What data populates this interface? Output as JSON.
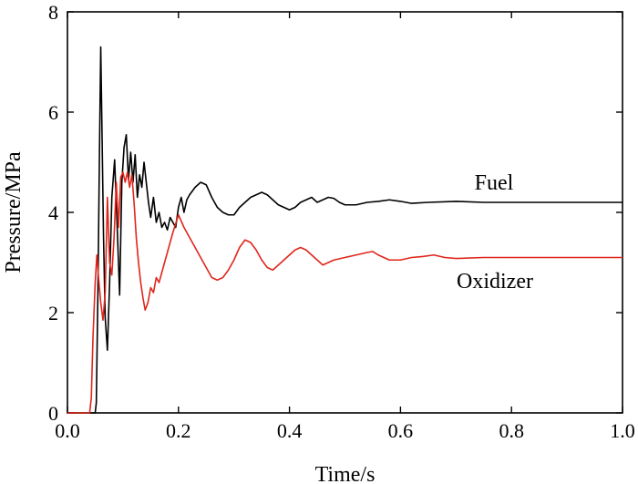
{
  "chart_data": {
    "type": "line",
    "xlabel": "Time/s",
    "ylabel": "Pressure/MPa",
    "xlim": [
      0.0,
      1.0
    ],
    "ylim": [
      0,
      8
    ],
    "x_ticks": [
      "0.0",
      "0.2",
      "0.4",
      "0.6",
      "0.8",
      "1.0"
    ],
    "y_ticks": [
      "0",
      "2",
      "4",
      "6",
      "8"
    ],
    "grid": false,
    "legend": "none",
    "series": [
      {
        "name": "Fuel",
        "color": "#000000",
        "x": [
          0.0,
          0.05,
          0.052,
          0.055,
          0.058,
          0.06,
          0.062,
          0.065,
          0.068,
          0.072,
          0.076,
          0.08,
          0.085,
          0.09,
          0.094,
          0.098,
          0.102,
          0.106,
          0.11,
          0.114,
          0.118,
          0.122,
          0.126,
          0.13,
          0.134,
          0.138,
          0.142,
          0.146,
          0.15,
          0.155,
          0.16,
          0.165,
          0.17,
          0.175,
          0.18,
          0.185,
          0.19,
          0.195,
          0.2,
          0.205,
          0.21,
          0.215,
          0.22,
          0.23,
          0.24,
          0.25,
          0.26,
          0.27,
          0.28,
          0.29,
          0.3,
          0.31,
          0.32,
          0.33,
          0.34,
          0.35,
          0.36,
          0.37,
          0.38,
          0.39,
          0.4,
          0.41,
          0.42,
          0.43,
          0.44,
          0.45,
          0.46,
          0.47,
          0.48,
          0.49,
          0.5,
          0.52,
          0.54,
          0.56,
          0.58,
          0.6,
          0.62,
          0.65,
          0.7,
          0.75,
          0.8,
          0.9,
          1.0
        ],
        "y": [
          0.0,
          0.0,
          0.2,
          2.5,
          5.5,
          7.3,
          5.8,
          3.5,
          1.9,
          1.25,
          2.6,
          4.3,
          5.05,
          3.6,
          2.35,
          4.6,
          5.3,
          5.55,
          4.65,
          5.2,
          4.6,
          5.15,
          4.3,
          4.75,
          4.5,
          5.0,
          4.6,
          4.2,
          3.9,
          4.3,
          3.8,
          4.0,
          3.7,
          3.8,
          3.65,
          3.9,
          3.8,
          3.7,
          4.1,
          4.3,
          4.0,
          4.25,
          4.35,
          4.5,
          4.6,
          4.55,
          4.3,
          4.1,
          4.0,
          3.95,
          3.95,
          4.1,
          4.2,
          4.3,
          4.35,
          4.4,
          4.35,
          4.25,
          4.15,
          4.1,
          4.05,
          4.1,
          4.2,
          4.25,
          4.3,
          4.2,
          4.25,
          4.3,
          4.28,
          4.2,
          4.15,
          4.15,
          4.2,
          4.22,
          4.25,
          4.22,
          4.18,
          4.2,
          4.22,
          4.2,
          4.2,
          4.2,
          4.2
        ]
      },
      {
        "name": "Oxidizer",
        "color": "#e0261c",
        "x": [
          0.0,
          0.04,
          0.043,
          0.046,
          0.05,
          0.053,
          0.056,
          0.06,
          0.064,
          0.068,
          0.072,
          0.076,
          0.08,
          0.084,
          0.088,
          0.092,
          0.096,
          0.1,
          0.104,
          0.108,
          0.112,
          0.116,
          0.12,
          0.124,
          0.128,
          0.132,
          0.136,
          0.14,
          0.145,
          0.15,
          0.155,
          0.16,
          0.165,
          0.17,
          0.175,
          0.18,
          0.19,
          0.2,
          0.21,
          0.22,
          0.23,
          0.24,
          0.25,
          0.26,
          0.27,
          0.28,
          0.29,
          0.3,
          0.31,
          0.32,
          0.33,
          0.34,
          0.35,
          0.36,
          0.37,
          0.38,
          0.39,
          0.4,
          0.41,
          0.42,
          0.43,
          0.44,
          0.45,
          0.46,
          0.47,
          0.48,
          0.5,
          0.52,
          0.54,
          0.55,
          0.56,
          0.58,
          0.6,
          0.62,
          0.64,
          0.66,
          0.68,
          0.7,
          0.75,
          0.8,
          0.85,
          0.9,
          0.95,
          1.0
        ],
        "y": [
          0.0,
          0.0,
          0.3,
          1.5,
          2.6,
          3.15,
          2.7,
          2.2,
          1.85,
          2.4,
          4.3,
          3.0,
          2.75,
          3.5,
          4.6,
          3.7,
          4.7,
          4.8,
          4.6,
          4.8,
          4.5,
          4.75,
          4.2,
          3.5,
          3.0,
          2.6,
          2.3,
          2.05,
          2.2,
          2.5,
          2.4,
          2.7,
          2.6,
          2.8,
          3.0,
          3.2,
          3.6,
          3.95,
          3.7,
          3.5,
          3.3,
          3.1,
          2.9,
          2.7,
          2.65,
          2.7,
          2.85,
          3.05,
          3.3,
          3.45,
          3.4,
          3.25,
          3.05,
          2.9,
          2.85,
          2.95,
          3.05,
          3.15,
          3.25,
          3.3,
          3.25,
          3.15,
          3.05,
          2.95,
          3.0,
          3.05,
          3.1,
          3.15,
          3.2,
          3.22,
          3.15,
          3.05,
          3.05,
          3.1,
          3.12,
          3.15,
          3.1,
          3.08,
          3.1,
          3.1,
          3.1,
          3.1,
          3.1,
          3.1
        ]
      }
    ]
  }
}
